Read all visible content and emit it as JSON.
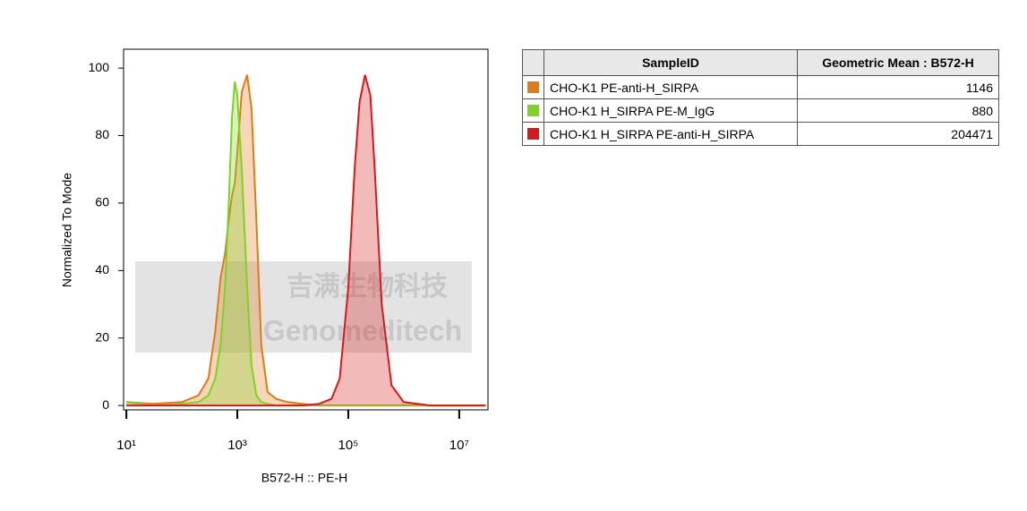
{
  "chart_data": {
    "type": "line",
    "xlabel": "B572-H :: PE-H",
    "ylabel": "Normalized To Mode",
    "log_x": true,
    "xlim": [
      8.9,
      33000000
    ],
    "xticks": [
      {
        "value": 10,
        "label": "10¹"
      },
      {
        "value": 1000,
        "label": "10³"
      },
      {
        "value": 100000,
        "label": "10⁵"
      },
      {
        "value": 10000000,
        "label": "10⁷"
      }
    ],
    "ylim": [
      -1.3,
      105.6
    ],
    "yticks": [
      0,
      20,
      40,
      60,
      80,
      100
    ],
    "watermark": [
      "吉满生物科技",
      "Genomeditech"
    ],
    "x": [
      10,
      30,
      100,
      200,
      300,
      400,
      500,
      600,
      700,
      800,
      900,
      1000,
      1200,
      1500,
      1800,
      2200,
      2700,
      3500,
      5000,
      8000,
      15000,
      30000,
      50000,
      70000,
      100000,
      130000,
      160000,
      200000,
      250000,
      300000,
      400000,
      600000,
      1000000,
      3000000,
      30000000
    ],
    "series": [
      {
        "name": "CHO-K1 PE-anti-H_SIRPA",
        "color": "#e07b1a",
        "values": [
          1,
          0.5,
          1,
          3,
          8,
          22,
          38,
          45,
          55,
          62,
          66,
          75,
          93,
          98,
          88,
          55,
          18,
          4,
          2,
          1,
          0.5,
          0,
          0,
          0,
          0,
          0,
          0,
          0,
          0,
          0,
          0,
          0,
          0,
          0,
          0
        ]
      },
      {
        "name": "CHO-K1 H_SIRPA PE-M_IgG",
        "color": "#7ed321",
        "values": [
          1,
          0,
          0.5,
          1,
          3,
          8,
          18,
          35,
          60,
          85,
          96,
          92,
          70,
          35,
          12,
          3,
          1,
          0.5,
          0,
          0,
          0,
          0,
          0,
          0,
          0,
          0,
          0,
          0,
          0,
          0,
          0,
          0,
          0,
          0,
          0
        ]
      },
      {
        "name": "CHO-K1 H_SIRPA PE-anti-H_SIRPA",
        "color": "#d7191c",
        "values": [
          0,
          0,
          0,
          0,
          0,
          0,
          0,
          0,
          0,
          0,
          0,
          0,
          0,
          0,
          0,
          0,
          0,
          0,
          0,
          0,
          0,
          0.5,
          2,
          8,
          35,
          70,
          90,
          98,
          92,
          70,
          30,
          6,
          1,
          0,
          0
        ]
      }
    ]
  },
  "table": {
    "columns": [
      "SampleID",
      "Geometric Mean : B572-H"
    ],
    "rows": [
      {
        "color": "#e07b1a",
        "sample": "CHO-K1 PE-anti-H_SIRPA",
        "value": "1146"
      },
      {
        "color": "#7ed321",
        "sample": "CHO-K1 H_SIRPA PE-M_IgG",
        "value": "880"
      },
      {
        "color": "#d7191c",
        "sample": "CHO-K1 H_SIRPA PE-anti-H_SIRPA",
        "value": "204471"
      }
    ]
  }
}
